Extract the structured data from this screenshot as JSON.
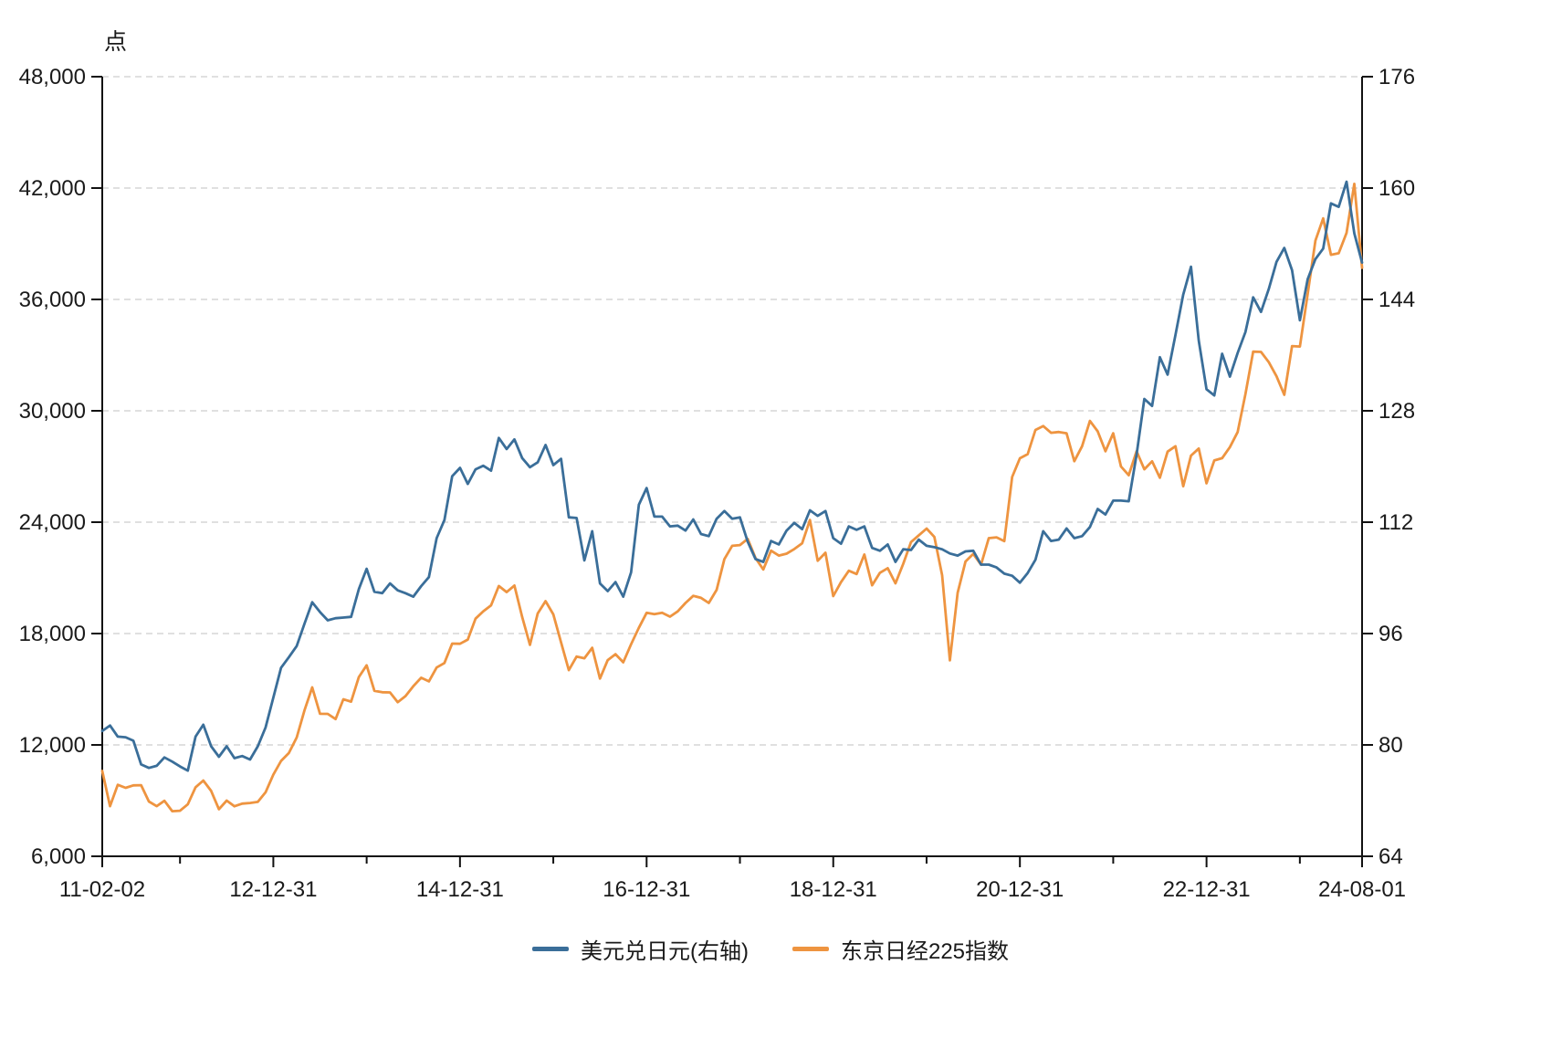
{
  "unit_label": "点",
  "chart_data": {
    "type": "line",
    "title": "",
    "xlabel": "",
    "ylabel_left": "点",
    "ylabel_right": "",
    "grid": true,
    "legend_position": "bottom",
    "left_axis": {
      "min": 6000,
      "max": 48000,
      "step": 6000
    },
    "right_axis": {
      "min": 64,
      "max": 176,
      "step": 16
    },
    "x_tick_labels": [
      "11-02-02",
      "12-12-31",
      "14-12-31",
      "16-12-31",
      "18-12-31",
      "20-12-31",
      "22-12-31",
      "24-08-01"
    ],
    "x_tick_indices": [
      0,
      22,
      46,
      70,
      94,
      118,
      142,
      162
    ],
    "x_minor_tick_indices": [
      10,
      34,
      58,
      82,
      106,
      130,
      154
    ],
    "x": [
      "2011-02",
      "2011-03",
      "2011-04",
      "2011-05",
      "2011-06",
      "2011-07",
      "2011-08",
      "2011-09",
      "2011-10",
      "2011-11",
      "2011-12",
      "2012-01",
      "2012-02",
      "2012-03",
      "2012-04",
      "2012-05",
      "2012-06",
      "2012-07",
      "2012-08",
      "2012-09",
      "2012-10",
      "2012-11",
      "2012-12",
      "2013-01",
      "2013-02",
      "2013-03",
      "2013-04",
      "2013-05",
      "2013-06",
      "2013-07",
      "2013-08",
      "2013-09",
      "2013-10",
      "2013-11",
      "2013-12",
      "2014-01",
      "2014-02",
      "2014-03",
      "2014-04",
      "2014-05",
      "2014-06",
      "2014-07",
      "2014-08",
      "2014-09",
      "2014-10",
      "2014-11",
      "2014-12",
      "2015-01",
      "2015-02",
      "2015-03",
      "2015-04",
      "2015-05",
      "2015-06",
      "2015-07",
      "2015-08",
      "2015-09",
      "2015-10",
      "2015-11",
      "2015-12",
      "2016-01",
      "2016-02",
      "2016-03",
      "2016-04",
      "2016-05",
      "2016-06",
      "2016-07",
      "2016-08",
      "2016-09",
      "2016-10",
      "2016-11",
      "2016-12",
      "2017-01",
      "2017-02",
      "2017-03",
      "2017-04",
      "2017-05",
      "2017-06",
      "2017-07",
      "2017-08",
      "2017-09",
      "2017-10",
      "2017-11",
      "2017-12",
      "2018-01",
      "2018-02",
      "2018-03",
      "2018-04",
      "2018-05",
      "2018-06",
      "2018-07",
      "2018-08",
      "2018-09",
      "2018-10",
      "2018-11",
      "2018-12",
      "2019-01",
      "2019-02",
      "2019-03",
      "2019-04",
      "2019-05",
      "2019-06",
      "2019-07",
      "2019-08",
      "2019-09",
      "2019-10",
      "2019-11",
      "2019-12",
      "2020-01",
      "2020-02",
      "2020-03",
      "2020-04",
      "2020-05",
      "2020-06",
      "2020-07",
      "2020-08",
      "2020-09",
      "2020-10",
      "2020-11",
      "2020-12",
      "2021-01",
      "2021-02",
      "2021-03",
      "2021-04",
      "2021-05",
      "2021-06",
      "2021-07",
      "2021-08",
      "2021-09",
      "2021-10",
      "2021-11",
      "2021-12",
      "2022-01",
      "2022-02",
      "2022-03",
      "2022-04",
      "2022-05",
      "2022-06",
      "2022-07",
      "2022-08",
      "2022-09",
      "2022-10",
      "2022-11",
      "2022-12",
      "2023-01",
      "2023-02",
      "2023-03",
      "2023-04",
      "2023-05",
      "2023-06",
      "2023-07",
      "2023-08",
      "2023-09",
      "2023-10",
      "2023-11",
      "2023-12",
      "2024-01",
      "2024-02",
      "2024-03",
      "2024-04",
      "2024-05",
      "2024-06",
      "2024-07",
      "2024-08"
    ],
    "series": [
      {
        "name": "美元兑日元(右轴)",
        "axis": "right",
        "color": "#3A6E99",
        "values": [
          82.0,
          82.8,
          81.2,
          81.1,
          80.6,
          77.2,
          76.7,
          77.0,
          78.2,
          77.6,
          76.9,
          76.3,
          81.2,
          82.9,
          79.8,
          78.3,
          79.8,
          78.1,
          78.4,
          77.9,
          79.8,
          82.5,
          86.8,
          91.1,
          92.6,
          94.2,
          97.4,
          100.5,
          99.1,
          97.9,
          98.2,
          98.3,
          98.4,
          102.4,
          105.3,
          102.0,
          101.8,
          103.2,
          102.2,
          101.8,
          101.3,
          102.8,
          104.1,
          109.7,
          112.3,
          118.6,
          119.8,
          117.5,
          119.6,
          120.1,
          119.4,
          124.1,
          122.5,
          123.9,
          121.2,
          119.9,
          120.6,
          123.1,
          120.2,
          121.1,
          112.7,
          112.6,
          106.5,
          110.7,
          103.2,
          102.1,
          103.4,
          101.3,
          104.8,
          114.5,
          116.9,
          112.8,
          112.8,
          111.4,
          111.5,
          110.8,
          112.4,
          110.3,
          110.0,
          112.5,
          113.6,
          112.5,
          112.7,
          109.2,
          106.7,
          106.3,
          109.3,
          108.8,
          110.8,
          111.9,
          111.0,
          113.7,
          112.9,
          113.6,
          109.7,
          108.9,
          111.4,
          110.9,
          111.4,
          108.3,
          107.9,
          108.8,
          106.3,
          108.1,
          108.0,
          109.5,
          108.6,
          108.4,
          108.1,
          107.5,
          107.2,
          107.8,
          107.9,
          105.9,
          105.9,
          105.5,
          104.6,
          104.3,
          103.3,
          104.7,
          106.6,
          110.7,
          109.3,
          109.5,
          111.1,
          109.7,
          110.0,
          111.3,
          113.9,
          113.1,
          115.1,
          115.1,
          115.0,
          121.7,
          129.7,
          128.7,
          135.7,
          133.2,
          138.9,
          144.7,
          148.7,
          138.1,
          131.1,
          130.2,
          136.2,
          132.9,
          136.3,
          139.3,
          144.3,
          142.2,
          145.5,
          149.4,
          151.4,
          148.2,
          141.0,
          146.9,
          149.8,
          151.3,
          157.8,
          157.3,
          160.9,
          153.5,
          149.3
        ]
      },
      {
        "name": "东京日经225指数",
        "axis": "left",
        "color": "#EE9440",
        "values": [
          10600,
          8700,
          9850,
          9690,
          9820,
          9830,
          8950,
          8700,
          8990,
          8430,
          8455,
          8800,
          9720,
          10080,
          9520,
          8540,
          9000,
          8695,
          8840,
          8870,
          8930,
          9446,
          10395,
          11140,
          11560,
          12400,
          13860,
          15100,
          13677,
          13670,
          13390,
          14460,
          14330,
          15660,
          16290,
          14915,
          14840,
          14830,
          14300,
          14630,
          15160,
          15620,
          15425,
          16170,
          16410,
          17460,
          17450,
          17675,
          18800,
          19200,
          19520,
          20560,
          20235,
          20585,
          18890,
          17390,
          19080,
          19747,
          19034,
          17518,
          16026,
          16759,
          16666,
          17235,
          15576,
          16569,
          16887,
          16450,
          17425,
          18308,
          19114,
          19041,
          19119,
          18909,
          19197,
          19650,
          20033,
          19925,
          19646,
          20356,
          22012,
          22725,
          22765,
          23098,
          22068,
          21454,
          22468,
          22202,
          22305,
          22554,
          22865,
          24120,
          21920,
          22351,
          20015,
          20773,
          21385,
          21206,
          22259,
          20601,
          21276,
          21522,
          20704,
          21756,
          22927,
          23294,
          23657,
          23205,
          21143,
          16553,
          20194,
          21878,
          22288,
          21710,
          23140,
          23185,
          22977,
          26434,
          27444,
          27663,
          28966,
          29179,
          28813,
          28860,
          28792,
          27284,
          28090,
          29453,
          28893,
          27822,
          28792,
          27002,
          26527,
          27821,
          26848,
          27280,
          26393,
          27801,
          28092,
          25937,
          27587,
          27969,
          26095,
          27327,
          27446,
          28041,
          28856,
          30888,
          33189,
          33172,
          32619,
          31858,
          30859,
          33487,
          33464,
          36287,
          39166,
          40369,
          38406,
          38488,
          39583,
          42224,
          37700
        ]
      }
    ]
  }
}
